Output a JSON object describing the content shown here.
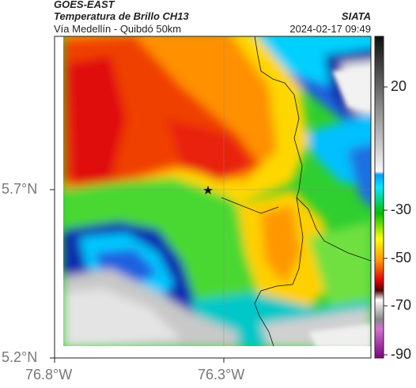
{
  "header": {
    "satellite": "GOES-EAST",
    "product": "Temperatura de Brillo CH13",
    "subtitle": "Vía Medellín - Quibdó 50km",
    "organization": "SIATA",
    "timestamp": "2024-02-17 09:49"
  },
  "map": {
    "lat_ticks": [
      "5.7°N",
      "5.2°N"
    ],
    "lon_ticks": [
      "76.8°W",
      "76.3°W"
    ],
    "marker_icon": "star-icon"
  },
  "colorbar": {
    "ticks": [
      "20",
      "-30",
      "-50",
      "-70",
      "-90"
    ],
    "colors": [
      "#1c1c1c",
      "#9a9a9a",
      "#f2f2f2",
      "#1aa0ff",
      "#00e0ff",
      "#00c800",
      "#ffff00",
      "#ff8000",
      "#e00000",
      "#600000",
      "#909090",
      "#ffffff",
      "#cc66cc",
      "#800080"
    ]
  }
}
